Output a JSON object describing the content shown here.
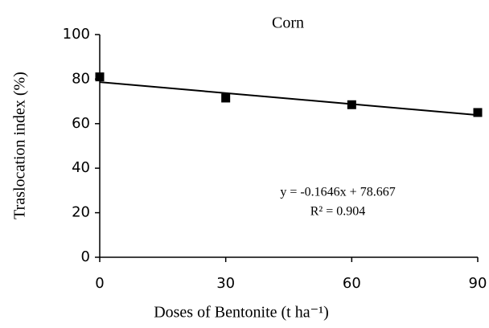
{
  "chart_data": {
    "type": "scatter",
    "title": "Corn",
    "x_label": "Doses of Bentonite (t ha⁻¹)",
    "y_label": "Traslocation index (%)",
    "x": [
      0,
      30,
      60,
      90
    ],
    "values": [
      81,
      71.5,
      68.5,
      65
    ],
    "color": "#000000",
    "xlim": [
      0,
      90
    ],
    "xticks": [
      0,
      30,
      60,
      90
    ],
    "ylim": [
      0,
      100
    ],
    "yticks": [
      0,
      20,
      40,
      60,
      80,
      100
    ],
    "grid": false,
    "trendline": {
      "slope": -0.1646,
      "intercept": 78.667
    },
    "annotations": [
      "y = -0.1646x + 78.667",
      "R² = 0.904"
    ]
  }
}
